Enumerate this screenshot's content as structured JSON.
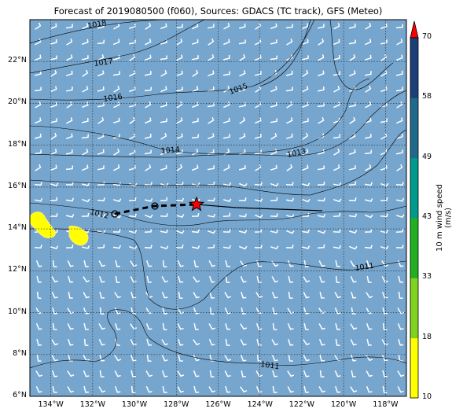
{
  "title": "Forecast of 2019080500 (f060), Sources: GDACS (TC track), GFS (Meteo)",
  "map": {
    "lon_range": [
      -135,
      -117
    ],
    "lat_range": [
      6,
      24
    ],
    "lat_labels": [
      "6°N",
      "8°N",
      "10°N",
      "12°N",
      "14°N",
      "16°N",
      "18°N",
      "20°N",
      "22°N"
    ],
    "lon_labels": [
      "134°W",
      "132°W",
      "130°W",
      "128°W",
      "126°W",
      "124°W",
      "122°W",
      "120°W",
      "118°W"
    ],
    "ocean_color": "#76a5cd",
    "land_color": "#ffff00",
    "isobar_labels": [
      "1018",
      "1017",
      "1016",
      "1015",
      "1014",
      "1013",
      "1012",
      "1011",
      "1011"
    ],
    "storm_marker": "red-star-icon",
    "forecast_positions": "black-circle-icon"
  },
  "colorbar": {
    "label": "10 m wind speed (m/s)",
    "ticks": [
      "10",
      "18",
      "33",
      "43",
      "49",
      "58",
      "70"
    ],
    "colors": [
      "#ffff00",
      "#7fd21e",
      "#22b022",
      "#009b8c",
      "#1f6a8c",
      "#1c3f78",
      "#1a2a5c"
    ],
    "extend_color": "#ff0000"
  }
}
